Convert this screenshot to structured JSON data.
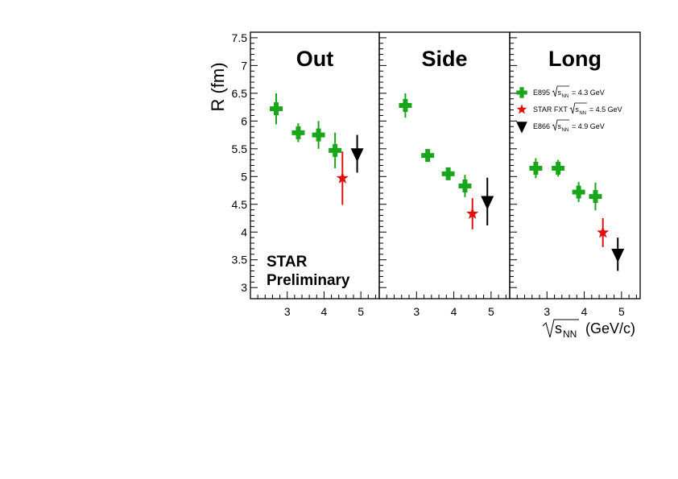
{
  "colors": {
    "E895": "#1aa61a",
    "STAR FXT": "#e01010",
    "E866": "#000000"
  },
  "chart_data": {
    "type": "scatter",
    "ylabel": "R (fm)",
    "xlabel_main": "s",
    "xlabel_sub": "NN",
    "xlabel_unit": "(GeV/c)",
    "ylim": [
      2.8,
      7.6
    ],
    "yticks": [
      "3",
      "3.5",
      "4",
      "4.5",
      "5",
      "5.5",
      "6",
      "6.5",
      "7",
      "7.5"
    ],
    "annotation": [
      "STAR",
      "Preliminary"
    ],
    "legend": {
      "placement": "top-right",
      "entries": [
        {
          "series": "E895",
          "label": "E895",
          "sqrt": "s",
          "sub": "NN",
          "energy": "= 4.3 GeV",
          "marker": "cross"
        },
        {
          "series": "STAR FXT",
          "label": "STAR FXT",
          "sqrt": "s",
          "sub": "NN",
          "energy": "= 4.5 GeV",
          "marker": "star"
        },
        {
          "series": "E866",
          "label": "E866",
          "sqrt": "s",
          "sub": "NN",
          "energy": "= 4.9 GeV",
          "marker": "triangle"
        }
      ]
    },
    "panels": [
      {
        "title": "Out",
        "xlim": [
          2.0,
          5.5
        ],
        "xticks": [
          "3",
          "4",
          "5"
        ],
        "series": [
          {
            "name": "E895",
            "marker": "cross",
            "x": [
              2.7,
              3.3,
              3.85,
              4.3
            ],
            "y": [
              6.22,
              5.79,
              5.75,
              5.47
            ],
            "yerr": [
              0.28,
              0.17,
              0.25,
              0.32
            ]
          },
          {
            "name": "STAR FXT",
            "marker": "star",
            "x": [
              4.5
            ],
            "y": [
              4.97
            ],
            "yerr": [
              0.48
            ]
          },
          {
            "name": "E866",
            "marker": "triangle",
            "x": [
              4.9
            ],
            "y": [
              5.41
            ],
            "yerr": [
              0.34
            ]
          }
        ]
      },
      {
        "title": "Side",
        "xlim": [
          2.0,
          5.5
        ],
        "xticks": [
          "3",
          "4",
          "5"
        ],
        "series": [
          {
            "name": "E895",
            "marker": "cross",
            "x": [
              2.7,
              3.3,
              3.85,
              4.3
            ],
            "y": [
              6.28,
              5.38,
              5.05,
              4.83
            ],
            "yerr": [
              0.22,
              0.08,
              0.1,
              0.2
            ]
          },
          {
            "name": "STAR FXT",
            "marker": "star",
            "x": [
              4.5
            ],
            "y": [
              4.33
            ],
            "yerr": [
              0.28
            ]
          },
          {
            "name": "E866",
            "marker": "triangle",
            "x": [
              4.9
            ],
            "y": [
              4.55
            ],
            "yerr": [
              0.43
            ]
          }
        ]
      },
      {
        "title": "Long",
        "xlim": [
          2.0,
          5.5
        ],
        "xticks": [
          "3",
          "4",
          "5"
        ],
        "series": [
          {
            "name": "E895",
            "marker": "cross",
            "x": [
              2.7,
              3.3,
              3.85,
              4.3
            ],
            "y": [
              5.15,
              5.15,
              4.72,
              4.64
            ],
            "yerr": [
              0.18,
              0.15,
              0.18,
              0.25
            ]
          },
          {
            "name": "STAR FXT",
            "marker": "star",
            "x": [
              4.5
            ],
            "y": [
              3.99
            ],
            "yerr": [
              0.26
            ]
          },
          {
            "name": "E866",
            "marker": "triangle",
            "x": [
              4.9
            ],
            "y": [
              3.6
            ],
            "yerr": [
              0.3
            ]
          }
        ]
      }
    ]
  }
}
